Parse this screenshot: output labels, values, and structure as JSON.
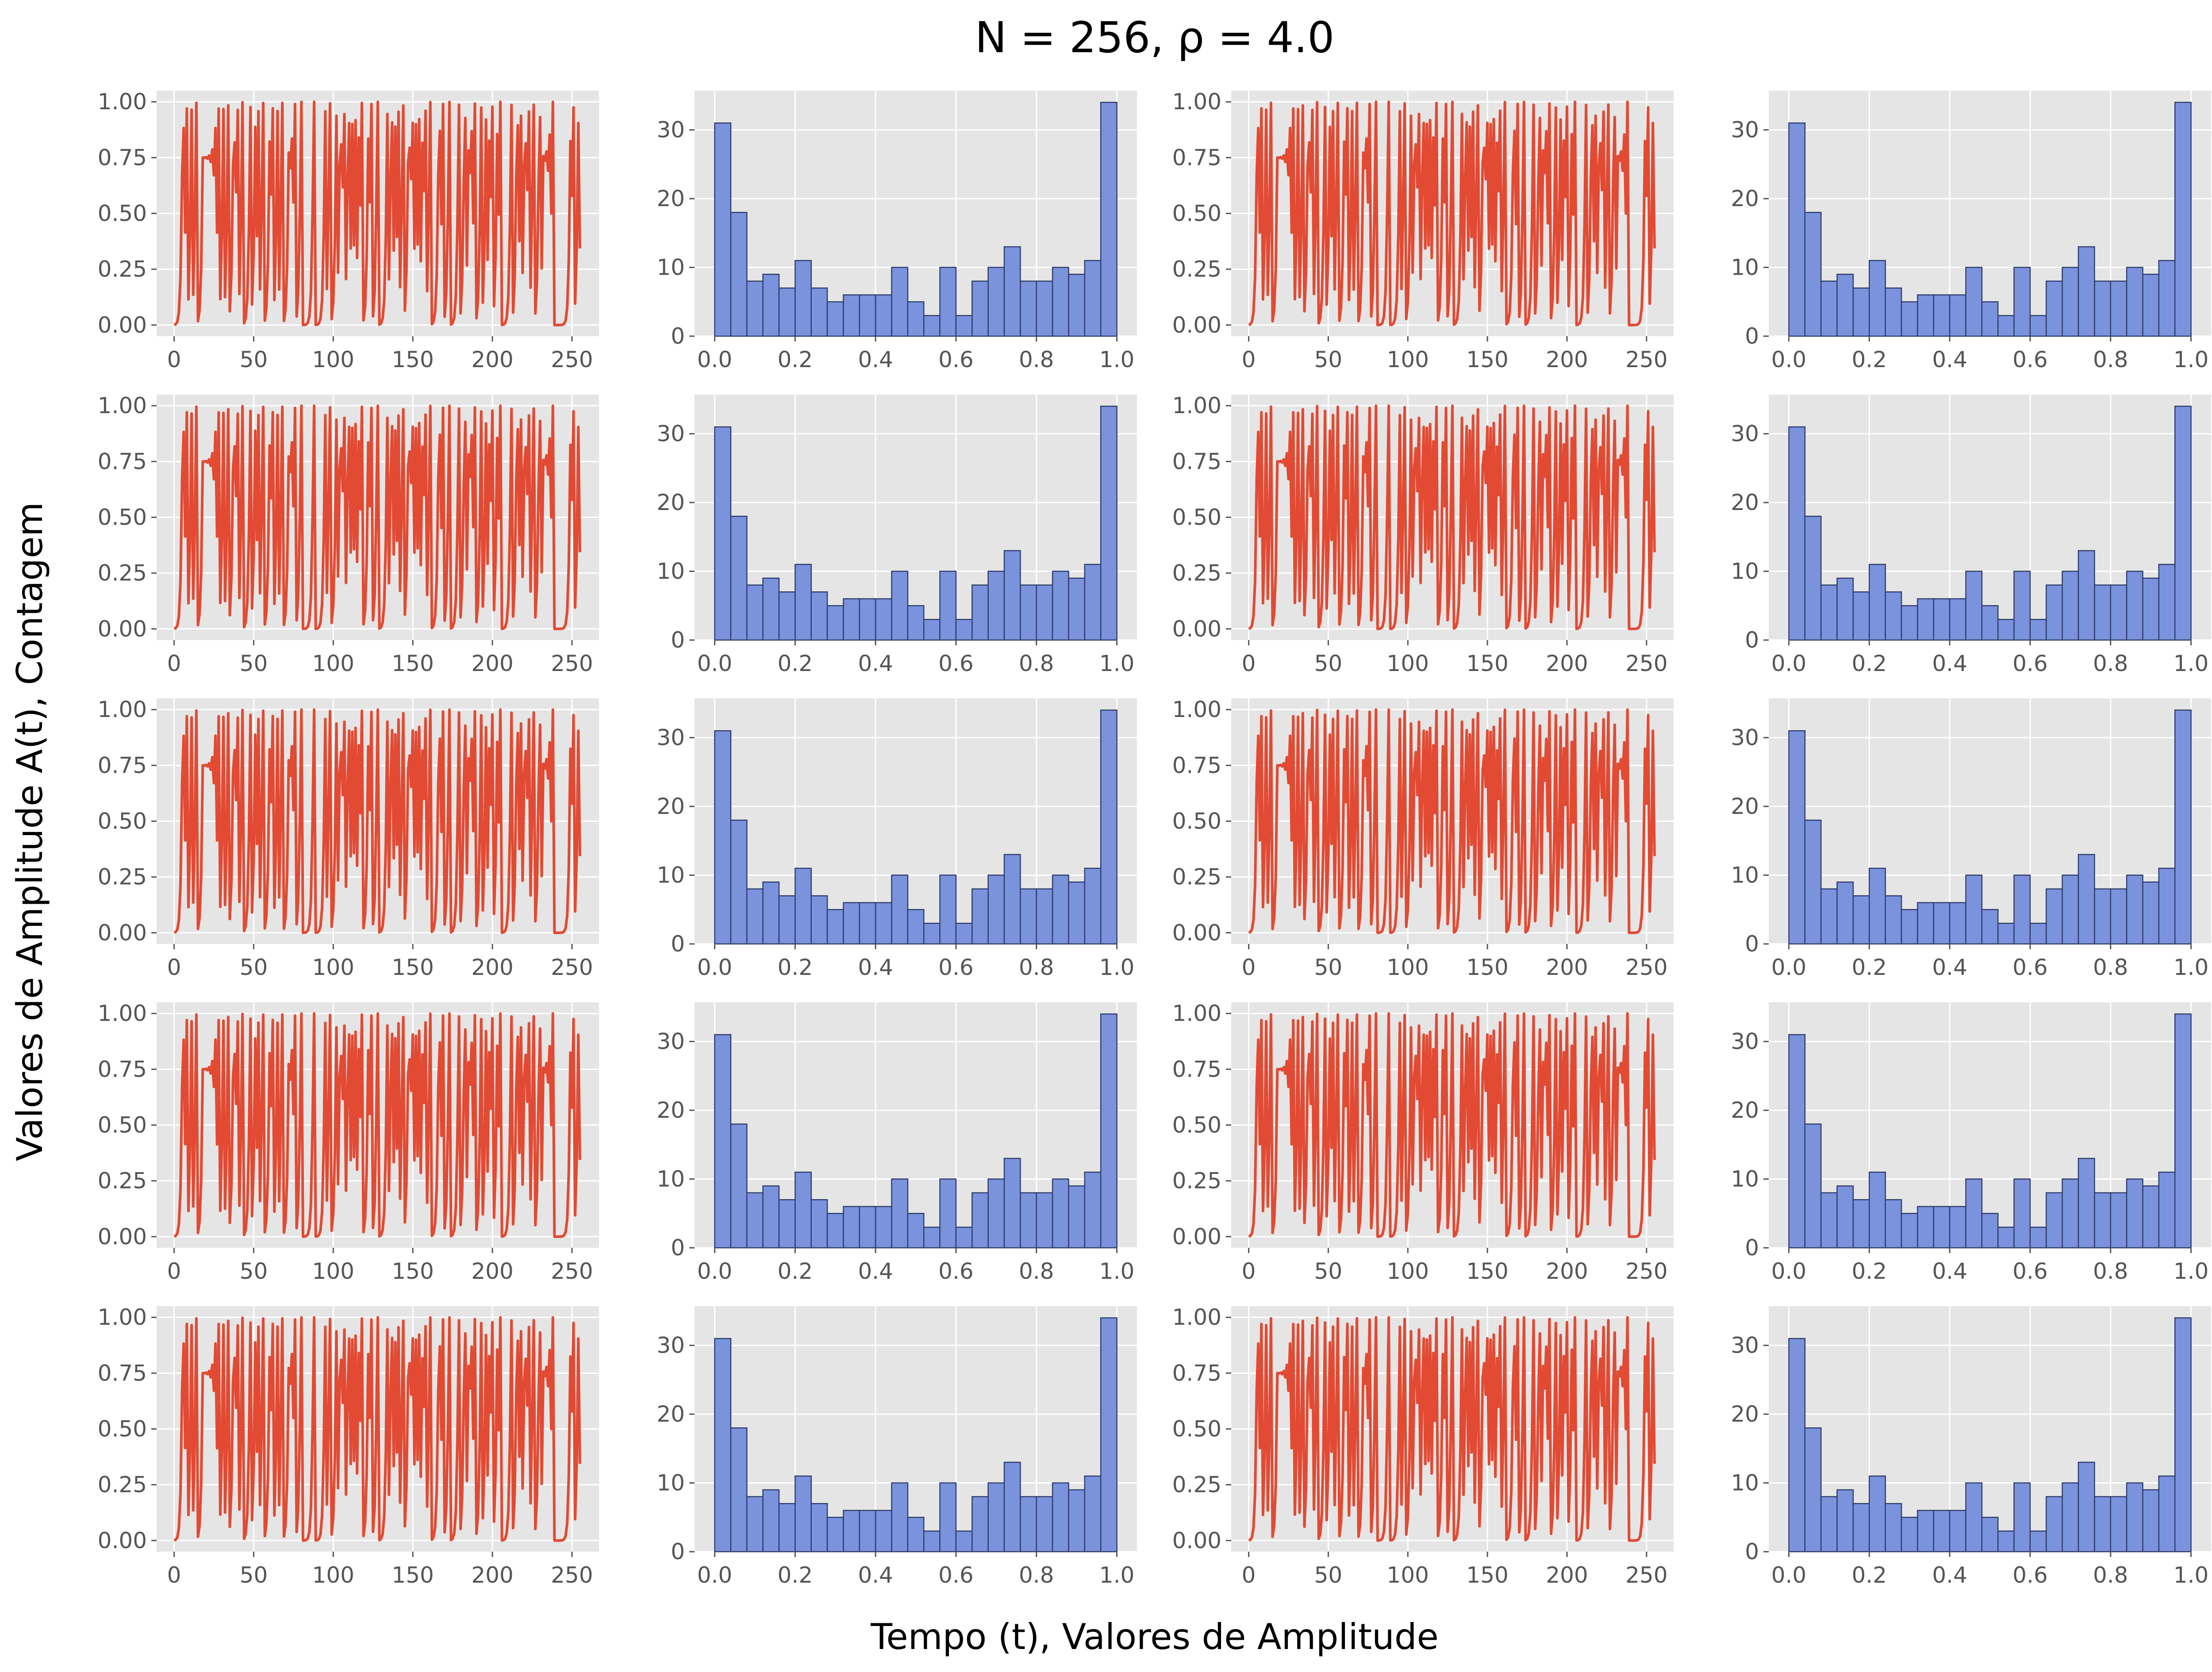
{
  "figure": {
    "title": "N = 256, ρ = 4.0",
    "xlabel": "Tempo (t), Valores de Amplitude",
    "ylabel": "Valores de Amplitude A(t), Contagem",
    "layout": "5 rows × 4 columns (time series and histogram panels alternate)"
  },
  "colors": {
    "background": "#ffffff",
    "panel": "#e5e5e5",
    "grid": "#ffffff",
    "line": "#e24a33",
    "bar_fill": "#7b93dd",
    "bar_edge": "#2f3d6b",
    "tick_text": "#555555",
    "title_text": "#000000"
  },
  "chart_data": [
    {
      "type": "line",
      "panel": "time series",
      "generator": "logistic map",
      "rho": 4.0,
      "n_points": 256,
      "x0": 0.0009,
      "xlim": [
        -11,
        267
      ],
      "ylim": [
        -0.05,
        1.05
      ],
      "xticks": [
        0,
        50,
        100,
        150,
        200,
        250
      ],
      "xtick_labels": [
        "0",
        "50",
        "100",
        "150",
        "200",
        "250"
      ],
      "yticks": [
        0,
        0.25,
        0.5,
        0.75,
        1.0
      ],
      "ytick_labels": [
        "0.00",
        "0.25",
        "0.50",
        "0.75",
        "1.00"
      ],
      "grid": true
    },
    {
      "type": "bar",
      "panel": "histogram",
      "bins": 25,
      "bin_edges": [
        0.0,
        0.04,
        0.08,
        0.12,
        0.16,
        0.2,
        0.24,
        0.28,
        0.32,
        0.36,
        0.4,
        0.44,
        0.48,
        0.52,
        0.56,
        0.6,
        0.64,
        0.68,
        0.72,
        0.76,
        0.8,
        0.84,
        0.88,
        0.92,
        0.96,
        1.0
      ],
      "values": [
        31,
        18,
        8,
        9,
        7,
        11,
        7,
        5,
        6,
        6,
        6,
        10,
        5,
        3,
        10,
        3,
        8,
        10,
        13,
        8,
        8,
        10,
        9,
        11,
        34
      ],
      "xlim": [
        -0.05,
        1.05
      ],
      "ylim": [
        0,
        35.7
      ],
      "xticks": [
        0,
        0.2,
        0.4,
        0.6,
        0.8,
        1.0
      ],
      "xtick_labels": [
        "0.0",
        "0.2",
        "0.4",
        "0.6",
        "0.8",
        "1.0"
      ],
      "yticks": [
        0,
        10,
        20,
        30
      ],
      "ytick_labels": [
        "0",
        "10",
        "20",
        "30"
      ],
      "grid": true
    }
  ]
}
